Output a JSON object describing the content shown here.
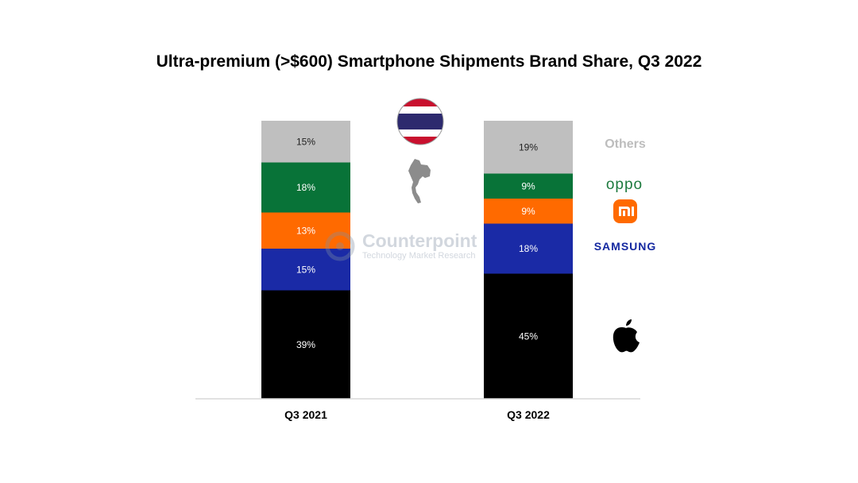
{
  "chart_data": {
    "type": "bar",
    "stacked": true,
    "title": "Ultra-premium (>$600) Smartphone Shipments Brand Share, Q3 2022",
    "categories": [
      "Q3 2021",
      "Q3 2022"
    ],
    "series": [
      {
        "name": "Apple",
        "values": [
          39,
          45
        ],
        "labels": [
          "39%",
          "45%"
        ],
        "color": "#000000"
      },
      {
        "name": "SAMSUNG",
        "values": [
          15,
          18
        ],
        "labels": [
          "15%",
          "18%"
        ],
        "color": "#1a2aa6"
      },
      {
        "name": "Xiaomi",
        "values": [
          13,
          9
        ],
        "labels": [
          "13%",
          "9%"
        ],
        "color": "#ff6a00"
      },
      {
        "name": "oppo",
        "values": [
          18,
          9
        ],
        "labels": [
          "18%",
          "9%"
        ],
        "color": "#087338"
      },
      {
        "name": "Others",
        "values": [
          15,
          19
        ],
        "labels": [
          "15%",
          "19%"
        ],
        "color": "#bfbfbf"
      }
    ],
    "ylim": [
      0,
      100
    ],
    "grid": false,
    "legend": "right"
  },
  "legend": {
    "others": "Others",
    "oppo": "oppo",
    "xiaomi_mark": "mi",
    "samsung": "SAMSUNG"
  },
  "watermark": {
    "name": "Counterpoint",
    "subtitle": "Technology Market Research"
  },
  "icons": [
    "thailand-flag-icon",
    "thailand-map-icon",
    "xiaomi-logo-icon",
    "apple-logo-icon",
    "counterpoint-logo-icon"
  ]
}
